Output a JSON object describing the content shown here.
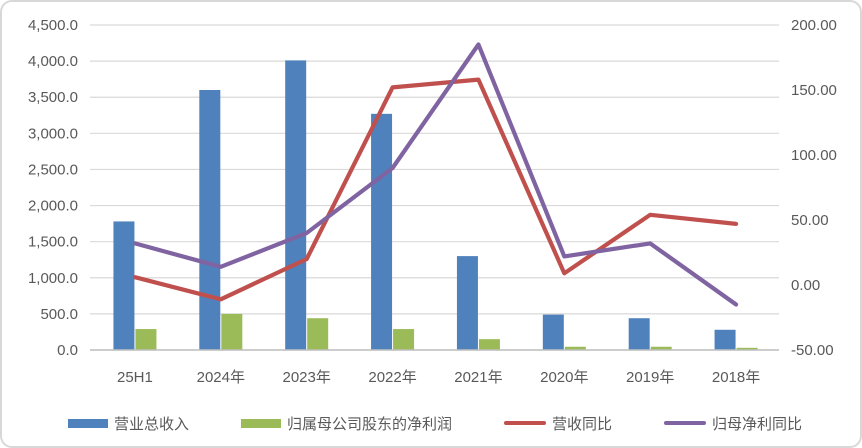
{
  "chart_data": {
    "type": "combo",
    "title": "",
    "categories": [
      "25H1",
      "2024年",
      "2023年",
      "2022年",
      "2021年",
      "2020年",
      "2019年",
      "2018年"
    ],
    "series": [
      {
        "name": "营业总收入",
        "chart_type": "bar",
        "axis": "left",
        "color": "#4F81BD",
        "values": [
          1780,
          3600,
          4010,
          3270,
          1300,
          490,
          440,
          280
        ]
      },
      {
        "name": "归属母公司股东的净利润",
        "chart_type": "bar",
        "axis": "left",
        "color": "#9BBB59",
        "values": [
          290,
          500,
          440,
          290,
          150,
          45,
          45,
          30
        ]
      },
      {
        "name": "营收同比",
        "chart_type": "line",
        "axis": "right",
        "color": "#C0504D",
        "values": [
          6,
          -11,
          20,
          152,
          158,
          9,
          54,
          47
        ]
      },
      {
        "name": "归母净利同比",
        "chart_type": "line",
        "axis": "right",
        "color": "#8064A2",
        "values": [
          32,
          14,
          40,
          90,
          185,
          22,
          32,
          -15
        ]
      }
    ],
    "left_axis": {
      "min": 0,
      "max": 4500,
      "step": 500,
      "tick_labels": [
        "4,500.0",
        "4,000.0",
        "3,500.0",
        "3,000.0",
        "2,500.0",
        "2,000.0",
        "1,500.0",
        "1,000.0",
        "500.0",
        "0.0"
      ]
    },
    "right_axis": {
      "min": -50,
      "max": 200,
      "step": 50,
      "tick_labels": [
        "200.00",
        "150.00",
        "100.00",
        "50.00",
        "0.00",
        "-50.00"
      ]
    },
    "grid": true,
    "legend_position": "bottom"
  },
  "styles": {
    "grid_color": "#D9D9D9",
    "axis_line_color": "#BFBFBF",
    "axis_text_color": "#595959",
    "background": "#FFFFFF",
    "border_color": "#D8D8D8"
  }
}
